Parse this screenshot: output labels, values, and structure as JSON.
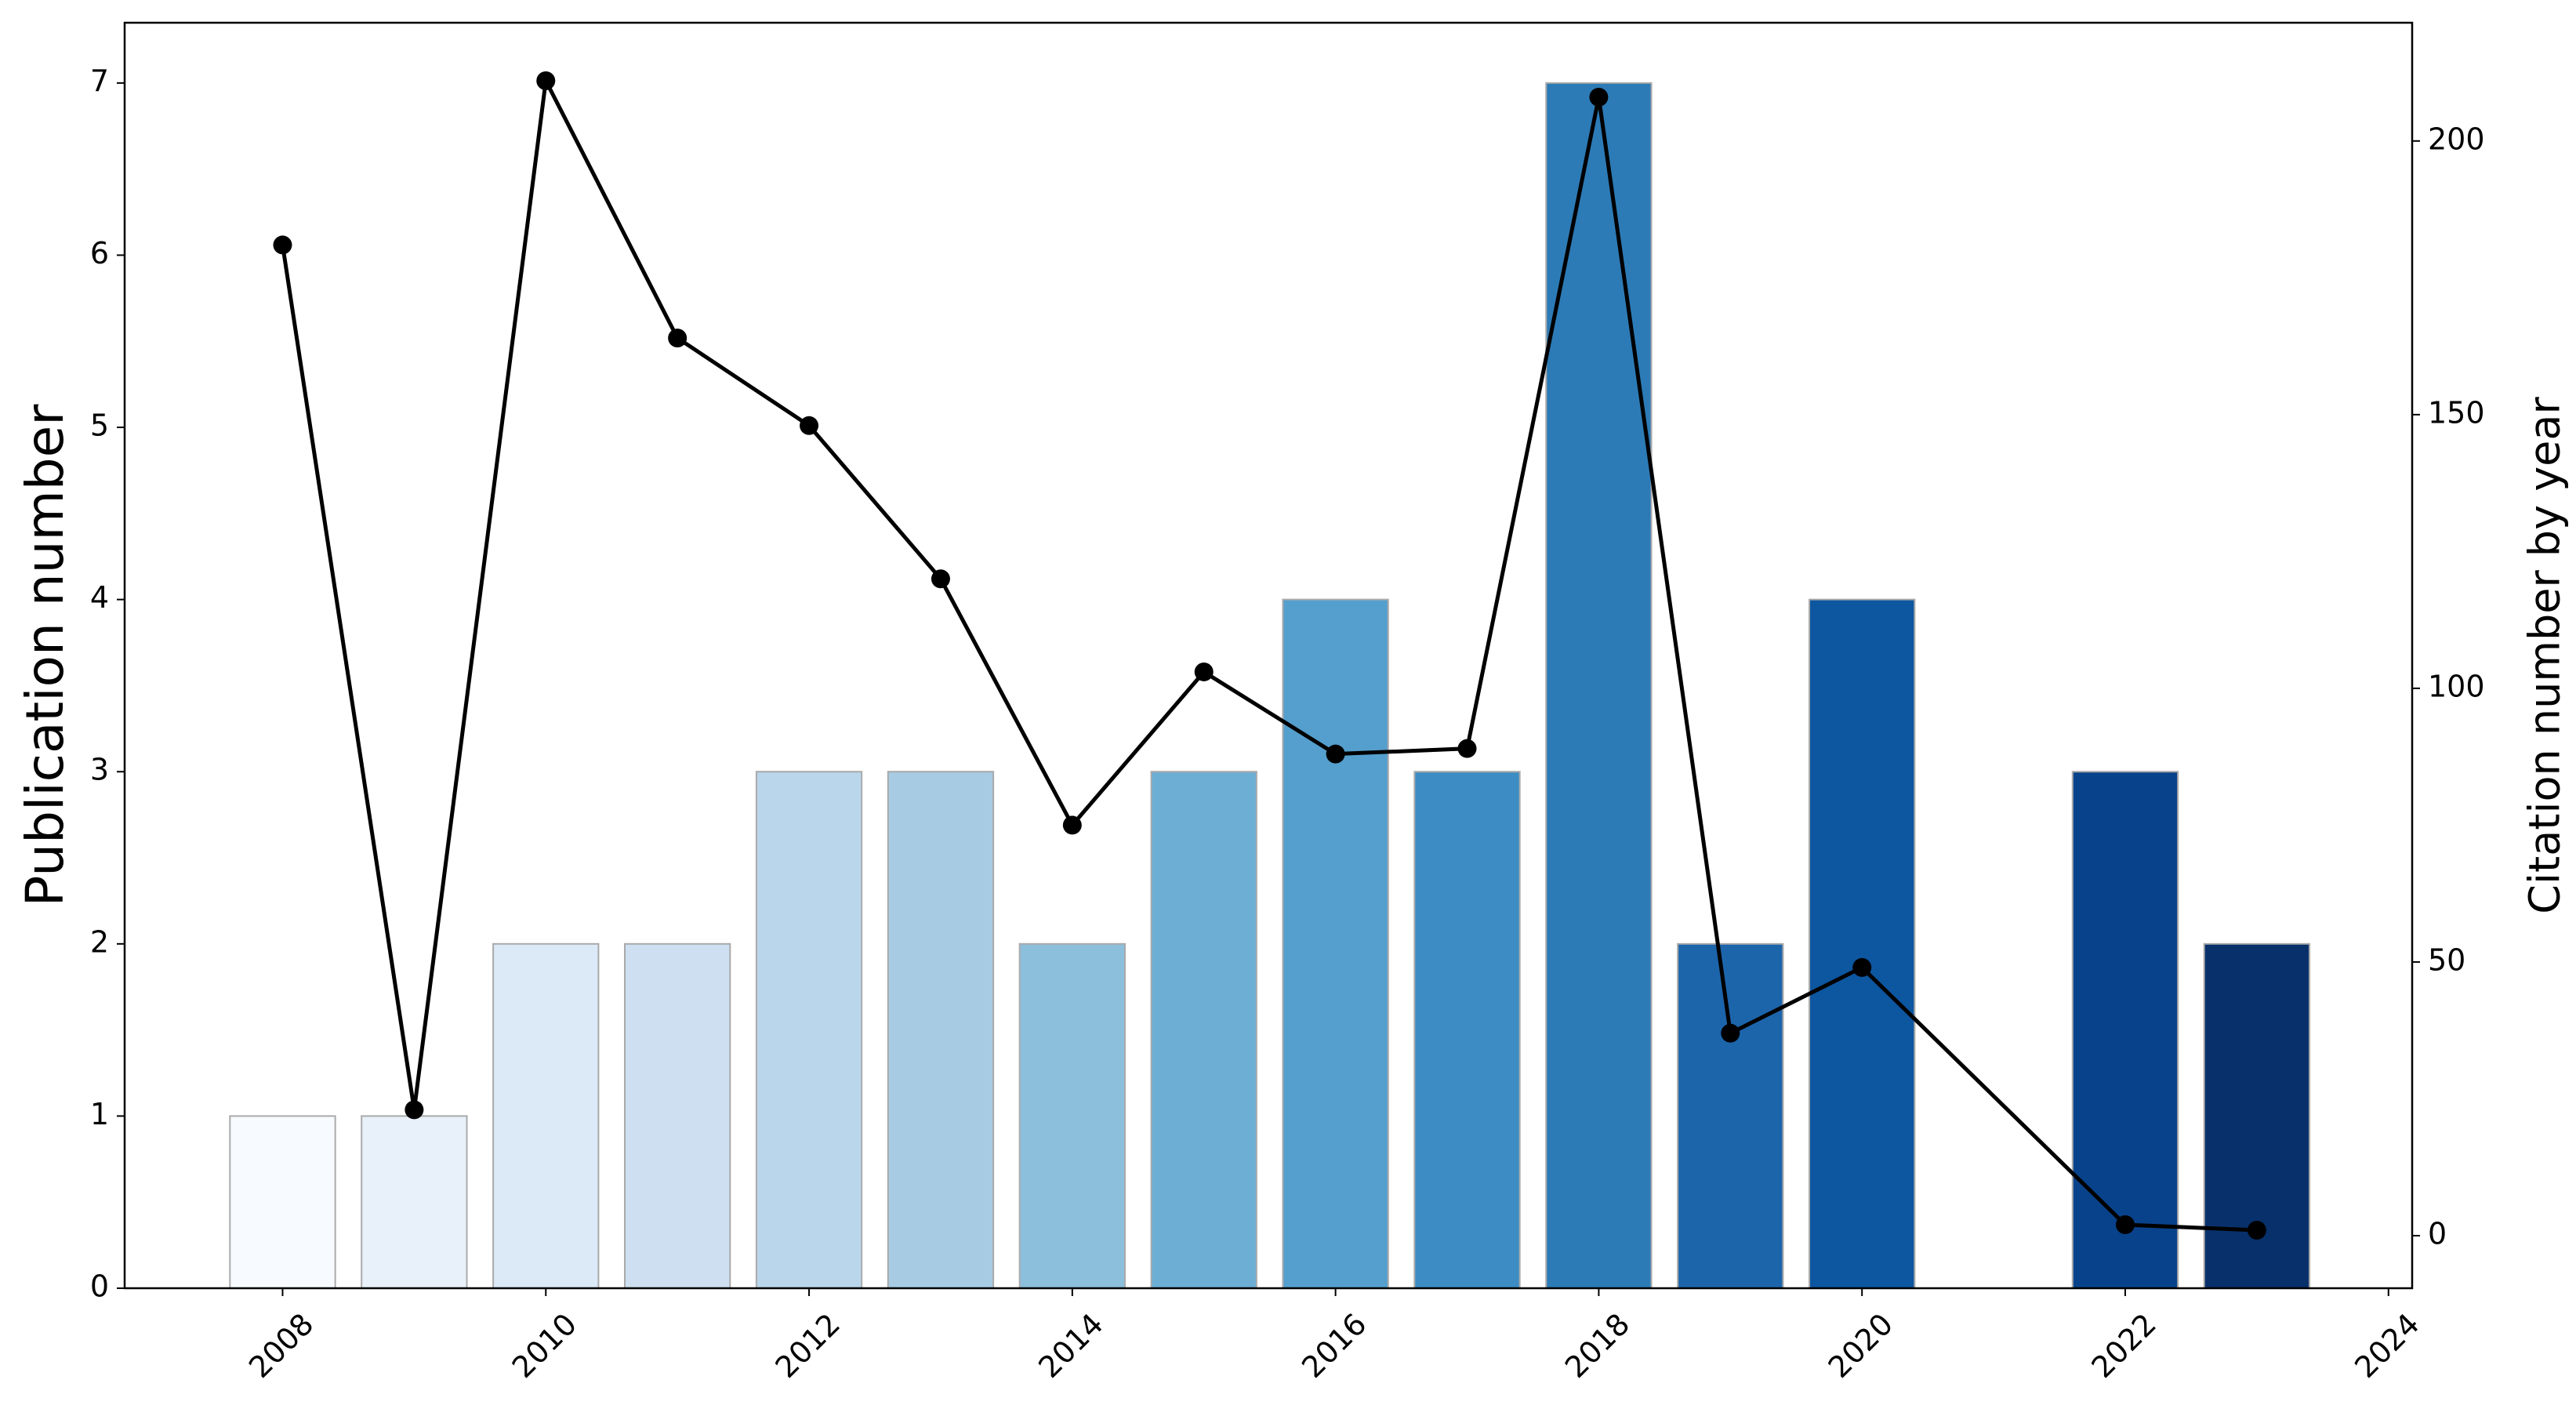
{
  "chart_data": {
    "type": "bar",
    "ylabel": "Publication number",
    "y2label": "Citation number by year",
    "x": [
      2008,
      2009,
      2010,
      2011,
      2012,
      2013,
      2014,
      2015,
      2016,
      2017,
      2018,
      2019,
      2020,
      2022,
      2023
    ],
    "series": [
      {
        "type": "bar",
        "axis": "y",
        "edgecolor": "#aaaaaa",
        "colors": [
          "#f7fbff",
          "#e8f1fa",
          "#dce9f6",
          "#cddff0",
          "#bad6eb",
          "#a6cbe3",
          "#8bbfdc",
          "#6daed5",
          "#549fcd",
          "#3d8dc4",
          "#2c7bb6",
          "#1c65ab",
          "#0d56a0",
          "#08428a",
          "#08306b"
        ],
        "values": [
          1,
          1,
          2,
          2,
          3,
          3,
          2,
          3,
          4,
          3,
          7,
          2,
          4,
          3,
          2
        ]
      },
      {
        "type": "line",
        "axis": "y2",
        "color": "#000000",
        "values": [
          181,
          23,
          211,
          164,
          148,
          120,
          75,
          103,
          88,
          89,
          208,
          37,
          49,
          2,
          1
        ]
      }
    ],
    "xlim": [
      2006.8,
      2024.18
    ],
    "xticks": [
      2008,
      2010,
      2012,
      2014,
      2016,
      2018,
      2020,
      2022,
      2024
    ],
    "ylim": [
      0,
      7.35
    ],
    "yticks": [
      0,
      1,
      2,
      3,
      4,
      5,
      6,
      7
    ],
    "y2lim": [
      -9.6,
      221.6
    ],
    "y2ticks": [
      0,
      50,
      100,
      150,
      200
    ]
  }
}
